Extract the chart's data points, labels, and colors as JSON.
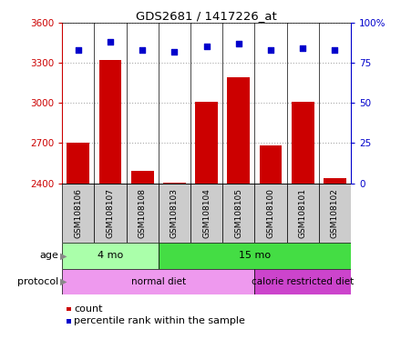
{
  "title": "GDS2681 / 1417226_at",
  "samples": [
    "GSM108106",
    "GSM108107",
    "GSM108108",
    "GSM108103",
    "GSM108104",
    "GSM108105",
    "GSM108100",
    "GSM108101",
    "GSM108102"
  ],
  "counts": [
    2700,
    3320,
    2490,
    2405,
    3010,
    3190,
    2680,
    3010,
    2440
  ],
  "percentiles": [
    83,
    88,
    83,
    82,
    85,
    87,
    83,
    84,
    83
  ],
  "ylim_left": [
    2400,
    3600
  ],
  "ylim_right": [
    0,
    100
  ],
  "yticks_left": [
    2400,
    2700,
    3000,
    3300,
    3600
  ],
  "yticks_right": [
    0,
    25,
    50,
    75,
    100
  ],
  "bar_color": "#cc0000",
  "dot_color": "#0000cc",
  "bar_bottom": 2400,
  "age_groups": [
    {
      "label": "4 mo",
      "start": 0,
      "end": 3,
      "color": "#aaffaa"
    },
    {
      "label": "15 mo",
      "start": 3,
      "end": 9,
      "color": "#44dd44"
    }
  ],
  "protocol_groups": [
    {
      "label": "normal diet",
      "start": 0,
      "end": 6,
      "color": "#ee99ee"
    },
    {
      "label": "calorie restricted diet",
      "start": 6,
      "end": 9,
      "color": "#cc44cc"
    }
  ],
  "grid_color": "#aaaaaa",
  "tick_color_left": "#cc0000",
  "tick_color_right": "#0000cc",
  "sample_box_color": "#cccccc",
  "label_arrow_color": "#888888"
}
